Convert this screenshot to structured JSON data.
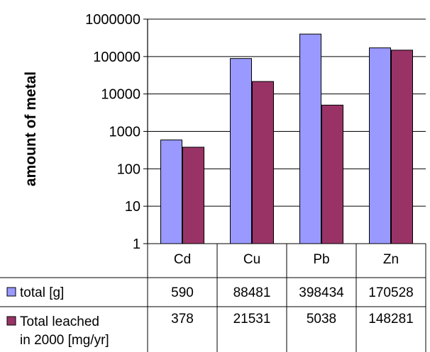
{
  "chart_data": {
    "type": "bar",
    "title": "",
    "xlabel": "",
    "ylabel": "amount of metal",
    "yscale": "log",
    "ylim": [
      1,
      1000000
    ],
    "yticks": [
      "1",
      "10",
      "100",
      "1000",
      "10000",
      "100000",
      "1000000"
    ],
    "grid": true,
    "categories": [
      "Cd",
      "Cu",
      "Pb",
      "Zn"
    ],
    "series": [
      {
        "name": "total [g]",
        "values": [
          590,
          88481,
          398434,
          170528
        ],
        "labels": [
          "590",
          "88481",
          "398434",
          "170528"
        ],
        "color": "#9999ff"
      },
      {
        "name": "Total leached in 2000 [mg/yr]",
        "name_lines": [
          "Total leached",
          "in 2000 [mg/yr]"
        ],
        "values": [
          378,
          21531,
          5038,
          148281
        ],
        "labels": [
          "378",
          "21531",
          "5038",
          "148281"
        ],
        "color": "#993366"
      }
    ],
    "legend": "data-table"
  }
}
